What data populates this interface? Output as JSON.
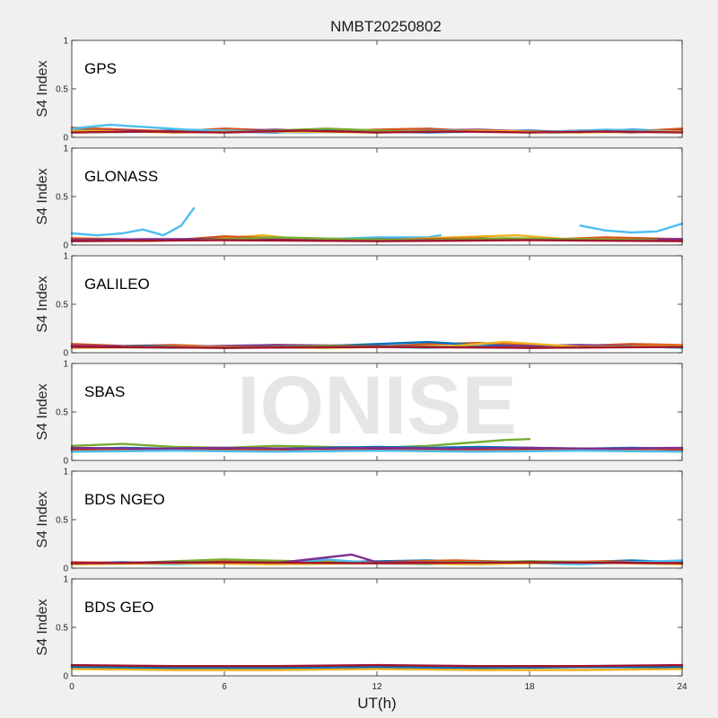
{
  "figure": {
    "title": "NMBT20250802",
    "watermark": "IONISE",
    "background": "#f0f0f0"
  },
  "chart_data": {
    "type": "line",
    "xlabel": "UT(h)",
    "ylabel": "S4 Index",
    "xlim": [
      0,
      24
    ],
    "ylim": [
      0,
      1
    ],
    "x_ticks": [
      0,
      6,
      12,
      18,
      24
    ],
    "y_ticks": [
      0,
      0.5,
      1
    ],
    "y_tick_labels": [
      "0",
      "0.5",
      "1"
    ],
    "grid": false,
    "palette": [
      "#0072bd",
      "#d95319",
      "#edb120",
      "#7e2f8e",
      "#77ac30",
      "#4dbeee",
      "#a2142f"
    ],
    "panels": [
      {
        "name": "GPS",
        "series": [
          {
            "color_index": 0,
            "x": [
              0,
              2,
              4,
              6,
              8,
              10,
              12,
              14,
              16,
              18,
              20,
              22,
              24
            ],
            "y": [
              0.08,
              0.06,
              0.07,
              0.06,
              0.05,
              0.07,
              0.06,
              0.05,
              0.06,
              0.07,
              0.05,
              0.08,
              0.06
            ]
          },
          {
            "color_index": 1,
            "x": [
              0,
              2,
              4,
              6,
              8,
              10,
              12,
              14,
              16,
              18,
              20,
              22,
              24
            ],
            "y": [
              0.1,
              0.08,
              0.06,
              0.09,
              0.07,
              0.06,
              0.08,
              0.09,
              0.06,
              0.05,
              0.07,
              0.06,
              0.09
            ]
          },
          {
            "color_index": 3,
            "x": [
              0,
              2,
              4,
              6,
              8,
              10,
              12,
              14,
              16,
              18,
              20,
              22,
              24
            ],
            "y": [
              0.06,
              0.07,
              0.05,
              0.06,
              0.08,
              0.06,
              0.05,
              0.07,
              0.08,
              0.06,
              0.06,
              0.05,
              0.07
            ]
          },
          {
            "color_index": 5,
            "x": [
              0,
              1.5,
              4.5,
              6,
              9,
              12,
              15,
              18,
              21,
              24
            ],
            "y": [
              0.09,
              0.13,
              0.08,
              0.07,
              0.05,
              0.06,
              0.07,
              0.05,
              0.08,
              0.06
            ]
          },
          {
            "color_index": 4,
            "x": [
              0,
              3,
              6,
              10,
              13,
              16,
              19,
              24
            ],
            "y": [
              0.05,
              0.06,
              0.05,
              0.09,
              0.06,
              0.07,
              0.05,
              0.06
            ]
          },
          {
            "color_index": 2,
            "x": [
              0,
              4,
              8,
              12,
              16,
              20,
              24
            ],
            "y": [
              0.07,
              0.05,
              0.06,
              0.05,
              0.07,
              0.05,
              0.06
            ]
          },
          {
            "color_index": 6,
            "x": [
              0,
              3,
              6,
              9,
              12,
              15,
              18,
              21,
              24
            ],
            "y": [
              0.05,
              0.06,
              0.05,
              0.07,
              0.05,
              0.06,
              0.05,
              0.06,
              0.05
            ]
          }
        ]
      },
      {
        "name": "GLONASS",
        "series": [
          {
            "color_index": 5,
            "x": [
              0,
              1,
              2,
              2.8,
              3.6,
              4.3,
              4.8
            ],
            "y": [
              0.12,
              0.1,
              0.12,
              0.16,
              0.1,
              0.2,
              0.38
            ]
          },
          {
            "color_index": 5,
            "x": [
              7,
              10,
              12,
              14,
              14.5
            ],
            "y": [
              0.05,
              0.06,
              0.08,
              0.08,
              0.1
            ]
          },
          {
            "color_index": 5,
            "x": [
              20,
              21,
              22,
              23,
              24
            ],
            "y": [
              0.2,
              0.15,
              0.13,
              0.14,
              0.22
            ]
          },
          {
            "color_index": 2,
            "x": [
              0,
              3,
              6,
              7.5,
              9,
              12,
              15,
              17.5,
              20,
              24
            ],
            "y": [
              0.05,
              0.04,
              0.07,
              0.1,
              0.06,
              0.05,
              0.08,
              0.1,
              0.05,
              0.06
            ]
          },
          {
            "color_index": 1,
            "x": [
              0,
              4,
              6,
              8,
              10,
              12,
              16,
              18,
              21,
              24
            ],
            "y": [
              0.07,
              0.05,
              0.09,
              0.07,
              0.06,
              0.05,
              0.07,
              0.05,
              0.08,
              0.06
            ]
          },
          {
            "color_index": 3,
            "x": [
              0,
              3,
              6,
              9,
              12,
              15,
              18,
              21,
              24
            ],
            "y": [
              0.05,
              0.06,
              0.06,
              0.05,
              0.06,
              0.05,
              0.06,
              0.05,
              0.06
            ]
          },
          {
            "color_index": 4,
            "x": [
              5,
              8,
              11,
              14,
              17,
              20,
              23
            ],
            "y": [
              0.05,
              0.08,
              0.06,
              0.05,
              0.07,
              0.06,
              0.05
            ]
          },
          {
            "color_index": 6,
            "x": [
              0,
              6,
              12,
              18,
              24
            ],
            "y": [
              0.04,
              0.05,
              0.04,
              0.05,
              0.04
            ]
          }
        ]
      },
      {
        "name": "GALILEO",
        "series": [
          {
            "color_index": 1,
            "x": [
              0,
              2,
              4,
              6,
              8,
              10,
              12,
              14,
              16,
              18,
              20,
              22,
              24
            ],
            "y": [
              0.09,
              0.07,
              0.08,
              0.06,
              0.08,
              0.07,
              0.06,
              0.09,
              0.1,
              0.08,
              0.07,
              0.09,
              0.08
            ]
          },
          {
            "color_index": 0,
            "x": [
              0,
              3,
              6,
              9,
              12,
              14,
              16,
              19,
              22,
              24
            ],
            "y": [
              0.06,
              0.07,
              0.05,
              0.06,
              0.09,
              0.11,
              0.08,
              0.06,
              0.07,
              0.05
            ]
          },
          {
            "color_index": 5,
            "x": [
              0,
              2,
              4,
              6,
              8,
              10,
              12,
              14,
              16,
              18,
              20,
              22,
              24
            ],
            "y": [
              0.05,
              0.06,
              0.05,
              0.07,
              0.06,
              0.05,
              0.06,
              0.05,
              0.07,
              0.05,
              0.06,
              0.07,
              0.05
            ]
          },
          {
            "color_index": 3,
            "x": [
              0,
              4,
              8,
              12,
              16,
              20,
              24
            ],
            "y": [
              0.07,
              0.06,
              0.08,
              0.07,
              0.06,
              0.08,
              0.06
            ]
          },
          {
            "color_index": 2,
            "x": [
              0,
              5,
              10,
              15,
              17,
              20,
              24
            ],
            "y": [
              0.05,
              0.06,
              0.05,
              0.07,
              0.11,
              0.06,
              0.07
            ]
          },
          {
            "color_index": 4,
            "x": [
              2,
              6,
              10,
              14,
              18,
              22
            ],
            "y": [
              0.06,
              0.05,
              0.07,
              0.06,
              0.05,
              0.06
            ]
          },
          {
            "color_index": 6,
            "x": [
              0,
              6,
              12,
              18,
              24
            ],
            "y": [
              0.06,
              0.05,
              0.06,
              0.05,
              0.06
            ]
          }
        ]
      },
      {
        "name": "SBAS",
        "series": [
          {
            "color_index": 4,
            "x": [
              0,
              2,
              4,
              6,
              8,
              10,
              12,
              14,
              15,
              16,
              17,
              18
            ],
            "y": [
              0.15,
              0.17,
              0.14,
              0.13,
              0.15,
              0.14,
              0.13,
              0.15,
              0.17,
              0.19,
              0.21,
              0.22
            ]
          },
          {
            "color_index": 0,
            "x": [
              0,
              2,
              4,
              6,
              8,
              10,
              12,
              14,
              16,
              18,
              20,
              22,
              24
            ],
            "y": [
              0.12,
              0.13,
              0.12,
              0.11,
              0.12,
              0.13,
              0.14,
              0.13,
              0.14,
              0.13,
              0.12,
              0.13,
              0.12
            ]
          },
          {
            "color_index": 6,
            "x": [
              0,
              2,
              4,
              6,
              8,
              10,
              12,
              14,
              16,
              18,
              20,
              22,
              24
            ],
            "y": [
              0.11,
              0.12,
              0.11,
              0.12,
              0.11,
              0.12,
              0.11,
              0.12,
              0.11,
              0.12,
              0.11,
              0.12,
              0.11
            ]
          },
          {
            "color_index": 1,
            "x": [
              0,
              3,
              6,
              9,
              12,
              15,
              18,
              21,
              24
            ],
            "y": [
              0.1,
              0.11,
              0.1,
              0.12,
              0.1,
              0.11,
              0.1,
              0.11,
              0.12
            ]
          },
          {
            "color_index": 3,
            "x": [
              0,
              3,
              6,
              9,
              12,
              15,
              18,
              21,
              24
            ],
            "y": [
              0.13,
              0.12,
              0.13,
              0.12,
              0.13,
              0.12,
              0.13,
              0.12,
              0.13
            ]
          },
          {
            "color_index": 5,
            "x": [
              0,
              4,
              8,
              12,
              16,
              20,
              24
            ],
            "y": [
              0.09,
              0.1,
              0.09,
              0.1,
              0.09,
              0.1,
              0.09
            ]
          }
        ]
      },
      {
        "name": "BDS NGEO",
        "series": [
          {
            "color_index": 0,
            "x": [
              0,
              2,
              4,
              6,
              8,
              10,
              12,
              14,
              16,
              18,
              20,
              22,
              24
            ],
            "y": [
              0.05,
              0.06,
              0.05,
              0.06,
              0.07,
              0.06,
              0.07,
              0.08,
              0.06,
              0.07,
              0.06,
              0.08,
              0.06
            ]
          },
          {
            "color_index": 1,
            "x": [
              0,
              3,
              6,
              9,
              12,
              15,
              18,
              21,
              24
            ],
            "y": [
              0.06,
              0.05,
              0.08,
              0.07,
              0.06,
              0.08,
              0.06,
              0.07,
              0.05
            ]
          },
          {
            "color_index": 4,
            "x": [
              0,
              3,
              6,
              9,
              12,
              15,
              18,
              21,
              24
            ],
            "y": [
              0.04,
              0.06,
              0.09,
              0.07,
              0.05,
              0.06,
              0.07,
              0.06,
              0.05
            ]
          },
          {
            "color_index": 5,
            "x": [
              0,
              2,
              4,
              6,
              8,
              10,
              12,
              14,
              16,
              18,
              20,
              22,
              24
            ],
            "y": [
              0.04,
              0.05,
              0.04,
              0.05,
              0.04,
              0.09,
              0.05,
              0.04,
              0.06,
              0.05,
              0.04,
              0.06,
              0.08
            ]
          },
          {
            "color_index": 3,
            "x": [
              0,
              4,
              8,
              11,
              12,
              16,
              20,
              24
            ],
            "y": [
              0.05,
              0.06,
              0.05,
              0.14,
              0.06,
              0.05,
              0.06,
              0.05
            ]
          },
          {
            "color_index": 2,
            "x": [
              0,
              4,
              8,
              12,
              16,
              20,
              24
            ],
            "y": [
              0.04,
              0.05,
              0.04,
              0.05,
              0.04,
              0.06,
              0.04
            ]
          },
          {
            "color_index": 6,
            "x": [
              0,
              6,
              12,
              18,
              24
            ],
            "y": [
              0.05,
              0.06,
              0.05,
              0.06,
              0.05
            ]
          }
        ]
      },
      {
        "name": "BDS GEO",
        "series": [
          {
            "color_index": 1,
            "x": [
              0,
              2,
              4,
              6,
              8,
              10,
              12,
              14,
              16,
              18,
              20,
              22,
              24
            ],
            "y": [
              0.1,
              0.09,
              0.09,
              0.08,
              0.09,
              0.09,
              0.1,
              0.09,
              0.09,
              0.1,
              0.09,
              0.1,
              0.1
            ]
          },
          {
            "color_index": 0,
            "x": [
              0,
              4,
              8,
              12,
              16,
              20,
              24
            ],
            "y": [
              0.09,
              0.08,
              0.08,
              0.09,
              0.08,
              0.09,
              0.09
            ]
          },
          {
            "color_index": 2,
            "x": [
              0,
              4,
              8,
              12,
              16,
              20,
              24
            ],
            "y": [
              0.07,
              0.06,
              0.06,
              0.07,
              0.06,
              0.06,
              0.07
            ]
          },
          {
            "color_index": 6,
            "x": [
              0,
              4,
              8,
              12,
              16,
              20,
              24
            ],
            "y": [
              0.11,
              0.1,
              0.1,
              0.11,
              0.1,
              0.1,
              0.11
            ]
          }
        ]
      }
    ]
  }
}
